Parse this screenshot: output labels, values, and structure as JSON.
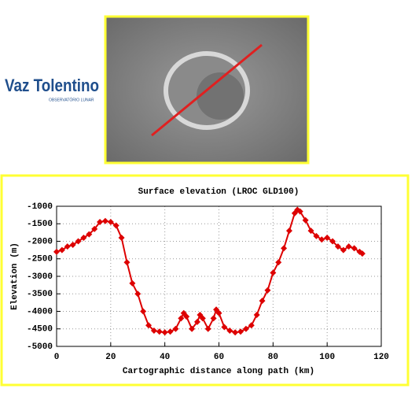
{
  "logo": {
    "name": "Vaz Tolentino",
    "subtitle": "OBSERVATÓRIO LUNAR"
  },
  "chart_data": {
    "type": "scatter",
    "title": "Surface elevation (LROC GLD100)",
    "x_label": "Cartographic distance along path (km)",
    "y_label": "Elevation (m)",
    "xlim": [
      0,
      120
    ],
    "xticks": [
      0,
      20,
      40,
      60,
      80,
      100,
      120
    ],
    "ylim": [
      -5000,
      -1000
    ],
    "yticks": [
      -5000,
      -4500,
      -4000,
      -3500,
      -3000,
      -2500,
      -2000,
      -1500,
      -1000
    ],
    "grid": true,
    "color": "#dd0000",
    "x": [
      0,
      2,
      4,
      6,
      8,
      10,
      12,
      14,
      16,
      18,
      20,
      22,
      24,
      26,
      28,
      30,
      32,
      34,
      36,
      38,
      40,
      42,
      44,
      46,
      47,
      48,
      50,
      52,
      53,
      54,
      56,
      58,
      59,
      60,
      62,
      64,
      66,
      68,
      70,
      72,
      74,
      76,
      78,
      80,
      82,
      84,
      86,
      88,
      89,
      90,
      92,
      94,
      96,
      98,
      100,
      102,
      104,
      106,
      108,
      110,
      112,
      113
    ],
    "values": [
      -2300,
      -2250,
      -2150,
      -2100,
      -2000,
      -1900,
      -1800,
      -1650,
      -1450,
      -1420,
      -1450,
      -1550,
      -1900,
      -2600,
      -3200,
      -3500,
      -4000,
      -4400,
      -4550,
      -4580,
      -4600,
      -4580,
      -4500,
      -4200,
      -4050,
      -4150,
      -4500,
      -4300,
      -4100,
      -4200,
      -4500,
      -4200,
      -3950,
      -4050,
      -4450,
      -4550,
      -4600,
      -4580,
      -4500,
      -4400,
      -4100,
      -3700,
      -3400,
      -2900,
      -2600,
      -2200,
      -1700,
      -1200,
      -1100,
      -1150,
      -1400,
      -1700,
      -1850,
      -1950,
      -1900,
      -2000,
      -2150,
      -2250,
      -2150,
      -2200,
      -2300,
      -2350
    ]
  }
}
